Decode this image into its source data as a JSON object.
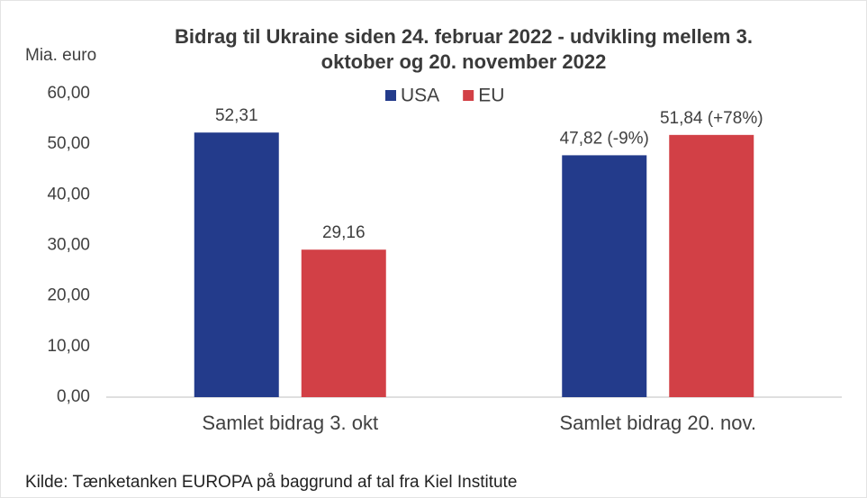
{
  "chart_data": {
    "type": "bar",
    "title": [
      "Bidrag til Ukraine siden 24. februar 2022 - udvikling mellem 3.",
      "oktober og 20. november 2022"
    ],
    "y_label": "Mia. euro",
    "categories": [
      "Samlet bidrag 3. okt",
      "Samlet bidrag 20. nov."
    ],
    "series": [
      {
        "name": "USA",
        "color": "#233b8b",
        "values": [
          52.31,
          47.82
        ],
        "value_labels": [
          "52,31",
          "47,82 (-9%)"
        ]
      },
      {
        "name": "EU",
        "color": "#d24046",
        "values": [
          29.16,
          51.84
        ],
        "value_labels": [
          "29,16",
          "51,84 (+78%)"
        ]
      }
    ],
    "ylim": [
      0,
      60
    ],
    "yticks": [
      {
        "value": 0,
        "label": "0,00"
      },
      {
        "value": 10,
        "label": "10,00"
      },
      {
        "value": 20,
        "label": "20,00"
      },
      {
        "value": 30,
        "label": "30,00"
      },
      {
        "value": 40,
        "label": "40,00"
      },
      {
        "value": 50,
        "label": "50,00"
      },
      {
        "value": 60,
        "label": "60,00"
      }
    ],
    "legend": "top",
    "source": "Kilde: Tænketanken EUROPA på baggrund af tal fra Kiel Institute"
  }
}
